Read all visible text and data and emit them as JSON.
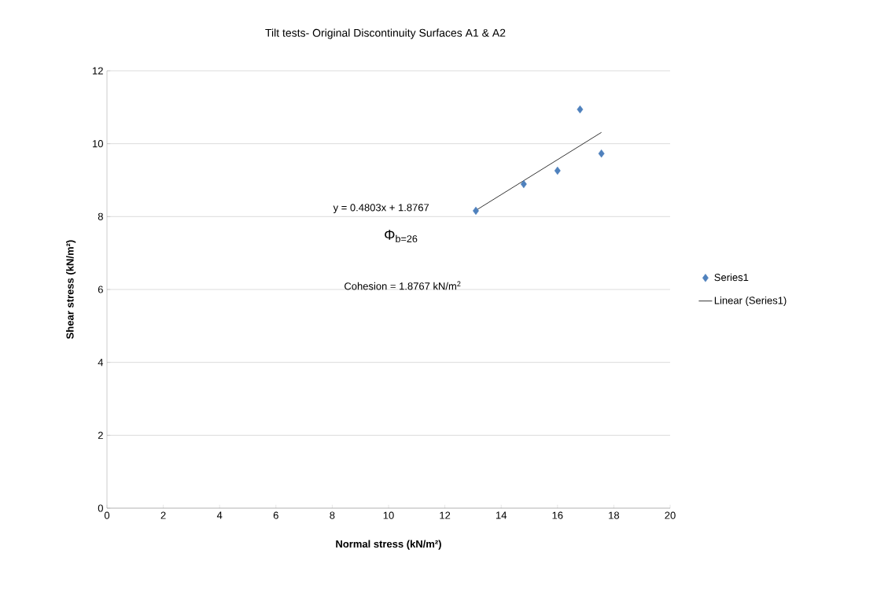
{
  "chart_data": {
    "type": "scatter",
    "title": "Tilt tests- Original Discontinuity Surfaces A1 & A2",
    "xlabel": "Normal stress (kN/m²)",
    "ylabel": "Shear stress (kN/m²)",
    "series": [
      {
        "name": "Series1",
        "marker": "diamond",
        "color": "#4f81bd",
        "x": [
          13.1,
          14.8,
          16.0,
          16.8,
          17.56
        ],
        "values": [
          8.16,
          8.89,
          9.26,
          10.94,
          9.73
        ]
      },
      {
        "name": "Linear (Series1)",
        "type": "line",
        "color": "#000000",
        "line_style": "solid",
        "x": [
          13.1,
          17.56
        ],
        "values": [
          8.17,
          10.31
        ]
      }
    ],
    "annotations": [
      "y = 0.4803x + 1.8767",
      "Φ$_{b=26}$",
      "Cohesion = 1.8767 kN/m$^{2}$"
    ],
    "xlim": [
      0,
      20
    ],
    "ylim": [
      0,
      12
    ],
    "xticks": [
      0,
      2,
      4,
      6,
      8,
      10,
      12,
      14,
      16,
      18,
      20
    ],
    "yticks": [
      0,
      2,
      4,
      6,
      8,
      10,
      12
    ],
    "grid": "y",
    "legend": "right"
  }
}
